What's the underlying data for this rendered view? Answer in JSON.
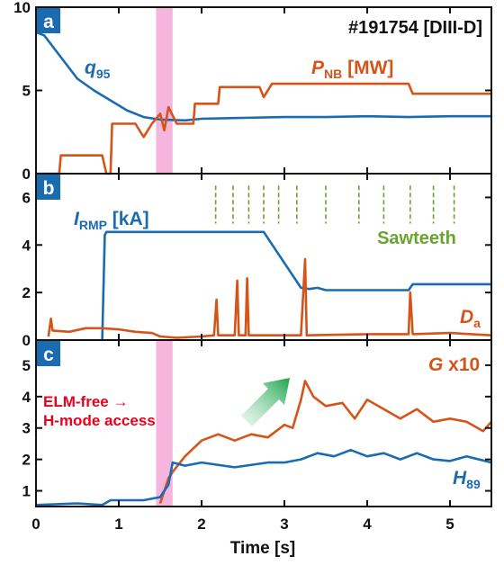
{
  "chart_data": {
    "type": "line",
    "shot_label": "#191754 [DIII-D]",
    "xlabel": "Time [s]",
    "x_ticks": [
      "0",
      "1",
      "2",
      "3",
      "4",
      "5"
    ],
    "xlim": [
      0,
      5.5
    ],
    "highlight_band": [
      1.45,
      1.65
    ],
    "colors": {
      "blue": "#1a6bb0",
      "orange": "#d5541a",
      "green": "#6aa32f",
      "red": "#e8001c",
      "pink": "#f5a8d6",
      "badge": "#1a6bb0"
    },
    "panels": [
      {
        "id": "a",
        "ylim": [
          0,
          10
        ],
        "y_ticks": [
          "0",
          "5",
          "10"
        ],
        "series": [
          {
            "label_main": "q",
            "label_sub": "95",
            "color": "blue",
            "points": [
              [
                0,
                8.5
              ],
              [
                0.1,
                8.3
              ],
              [
                0.3,
                7.0
              ],
              [
                0.5,
                5.7
              ],
              [
                0.7,
                5.0
              ],
              [
                0.9,
                4.4
              ],
              [
                1.1,
                3.8
              ],
              [
                1.3,
                3.4
              ],
              [
                1.5,
                3.25
              ],
              [
                1.8,
                3.2
              ],
              [
                2.0,
                3.3
              ],
              [
                2.5,
                3.35
              ],
              [
                3.0,
                3.4
              ],
              [
                3.5,
                3.4
              ],
              [
                4.0,
                3.45
              ],
              [
                4.5,
                3.4
              ],
              [
                5.0,
                3.45
              ],
              [
                5.5,
                3.45
              ]
            ]
          },
          {
            "label_main": "P",
            "label_sub": "NB",
            "label_unit": "[MW]",
            "color": "orange",
            "points": [
              [
                0,
                0
              ],
              [
                0.28,
                0
              ],
              [
                0.3,
                1.1
              ],
              [
                0.8,
                1.1
              ],
              [
                0.85,
                0
              ],
              [
                0.9,
                0
              ],
              [
                0.92,
                3.0
              ],
              [
                1.2,
                3.0
              ],
              [
                1.3,
                2.2
              ],
              [
                1.4,
                3.0
              ],
              [
                1.5,
                3.6
              ],
              [
                1.55,
                2.6
              ],
              [
                1.6,
                4.0
              ],
              [
                1.7,
                3.0
              ],
              [
                1.9,
                3.0
              ],
              [
                1.92,
                4.2
              ],
              [
                2.2,
                4.2
              ],
              [
                2.22,
                5.2
              ],
              [
                2.7,
                5.2
              ],
              [
                2.75,
                4.6
              ],
              [
                2.85,
                5.4
              ],
              [
                4.5,
                5.4
              ],
              [
                4.55,
                4.8
              ],
              [
                5.5,
                4.8
              ]
            ]
          }
        ]
      },
      {
        "id": "b",
        "ylim": [
          0,
          7
        ],
        "y_ticks": [
          "0",
          "2",
          "4",
          "6"
        ],
        "sawteeth_label": "Sawteeth",
        "sawteeth_times": [
          2.17,
          2.38,
          2.57,
          2.75,
          2.93,
          3.15,
          3.5,
          3.9,
          4.2,
          4.52,
          4.8,
          5.05
        ],
        "series": [
          {
            "label_main": "I",
            "label_sub": "RMP",
            "label_unit": "[kA]",
            "color": "blue",
            "points": [
              [
                0.8,
                0
              ],
              [
                0.83,
                4.4
              ],
              [
                0.85,
                4.55
              ],
              [
                2.75,
                4.55
              ],
              [
                3.2,
                2.2
              ],
              [
                3.3,
                2.15
              ],
              [
                3.4,
                2.2
              ],
              [
                3.5,
                2.1
              ],
              [
                4.5,
                2.1
              ],
              [
                4.55,
                2.35
              ],
              [
                5.5,
                2.35
              ]
            ]
          },
          {
            "label_main": "D",
            "label_sub": "a",
            "color": "orange",
            "points": [
              [
                0.15,
                0.15
              ],
              [
                0.18,
                0.9
              ],
              [
                0.2,
                0.4
              ],
              [
                0.4,
                0.35
              ],
              [
                0.6,
                0.5
              ],
              [
                0.8,
                0.5
              ],
              [
                1.0,
                0.45
              ],
              [
                1.2,
                0.35
              ],
              [
                1.4,
                0.3
              ],
              [
                1.5,
                0.15
              ],
              [
                1.7,
                0.1
              ],
              [
                2.0,
                0.15
              ],
              [
                2.15,
                0.2
              ],
              [
                2.18,
                1.7
              ],
              [
                2.2,
                0.2
              ],
              [
                2.4,
                0.2
              ],
              [
                2.43,
                2.5
              ],
              [
                2.45,
                0.2
              ],
              [
                2.53,
                0.2
              ],
              [
                2.55,
                2.6
              ],
              [
                2.57,
                0.2
              ],
              [
                3.2,
                0.2
              ],
              [
                3.25,
                3.4
              ],
              [
                3.27,
                0.2
              ],
              [
                4.0,
                0.25
              ],
              [
                4.5,
                0.25
              ],
              [
                4.52,
                2.0
              ],
              [
                4.55,
                0.25
              ],
              [
                5.0,
                0.3
              ],
              [
                5.5,
                0.2
              ]
            ]
          }
        ]
      },
      {
        "id": "c",
        "ylim": [
          0.5,
          5.8
        ],
        "y_ticks": [
          "1",
          "2",
          "3",
          "4",
          "5"
        ],
        "annotation_line1": "ELM-free →",
        "annotation_line2": "H-mode access",
        "series": [
          {
            "label_main": "G",
            "label_unit": "x10",
            "color": "orange",
            "points": [
              [
                1.5,
                0.6
              ],
              [
                1.6,
                1.4
              ],
              [
                1.65,
                1.6
              ],
              [
                1.8,
                2.1
              ],
              [
                2.0,
                2.6
              ],
              [
                2.2,
                2.8
              ],
              [
                2.4,
                2.6
              ],
              [
                2.6,
                2.8
              ],
              [
                2.8,
                2.7
              ],
              [
                3.0,
                3.1
              ],
              [
                3.1,
                3.0
              ],
              [
                3.2,
                3.9
              ],
              [
                3.25,
                4.5
              ],
              [
                3.35,
                4.0
              ],
              [
                3.5,
                3.7
              ],
              [
                3.7,
                3.8
              ],
              [
                3.85,
                3.3
              ],
              [
                4.0,
                3.9
              ],
              [
                4.2,
                3.6
              ],
              [
                4.4,
                3.3
              ],
              [
                4.6,
                3.6
              ],
              [
                4.8,
                3.2
              ],
              [
                5.0,
                3.3
              ],
              [
                5.2,
                3.2
              ],
              [
                5.4,
                2.9
              ],
              [
                5.5,
                3.2
              ]
            ]
          },
          {
            "label_main": "H",
            "label_sub": "89",
            "color": "blue",
            "points": [
              [
                0,
                0.55
              ],
              [
                0.5,
                0.6
              ],
              [
                0.8,
                0.55
              ],
              [
                0.9,
                0.7
              ],
              [
                1.3,
                0.7
              ],
              [
                1.5,
                0.8
              ],
              [
                1.6,
                1.2
              ],
              [
                1.65,
                1.9
              ],
              [
                1.8,
                1.8
              ],
              [
                2.0,
                1.9
              ],
              [
                2.4,
                1.75
              ],
              [
                2.8,
                1.9
              ],
              [
                3.0,
                1.9
              ],
              [
                3.2,
                2.0
              ],
              [
                3.4,
                2.2
              ],
              [
                3.6,
                2.1
              ],
              [
                3.8,
                2.3
              ],
              [
                4.0,
                2.1
              ],
              [
                4.2,
                2.2
              ],
              [
                4.4,
                2.0
              ],
              [
                4.6,
                2.2
              ],
              [
                4.8,
                2.0
              ],
              [
                5.0,
                1.95
              ],
              [
                5.2,
                2.1
              ],
              [
                5.5,
                1.9
              ]
            ]
          }
        ]
      }
    ]
  }
}
